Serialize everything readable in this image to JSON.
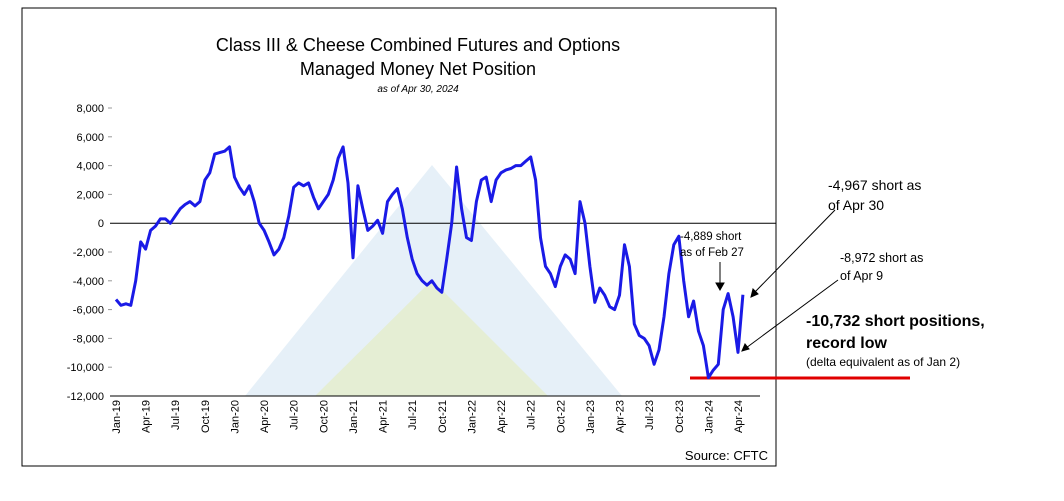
{
  "chart_data": {
    "type": "line",
    "title": [
      "Class III & Cheese Combined Futures and Options",
      "Managed Money Net Position"
    ],
    "subtitle": "as of Apr 30, 2024",
    "source": "Source: CFTC",
    "categories": [
      "Jan-19",
      null,
      null,
      null,
      null,
      null,
      "Apr-19",
      null,
      null,
      null,
      null,
      null,
      "Jul-19",
      null,
      null,
      null,
      null,
      null,
      "Oct-19",
      null,
      null,
      null,
      null,
      null,
      "Jan-20",
      null,
      null,
      null,
      null,
      null,
      "Apr-20",
      null,
      null,
      null,
      null,
      null,
      "Jul-20",
      null,
      null,
      null,
      null,
      null,
      "Oct-20",
      null,
      null,
      null,
      null,
      null,
      "Jan-21",
      null,
      null,
      null,
      null,
      null,
      "Apr-21",
      null,
      null,
      null,
      null,
      null,
      "Jul-21",
      null,
      null,
      null,
      null,
      null,
      "Oct-21",
      null,
      null,
      null,
      null,
      null,
      "Jan-22",
      null,
      null,
      null,
      null,
      null,
      "Apr-22",
      null,
      null,
      null,
      null,
      null,
      "Jul-22",
      null,
      null,
      null,
      null,
      null,
      "Oct-22",
      null,
      null,
      null,
      null,
      null,
      "Jan-23",
      null,
      null,
      null,
      null,
      null,
      "Apr-23",
      null,
      null,
      null,
      null,
      null,
      "Jul-23",
      null,
      null,
      null,
      null,
      null,
      "Oct-23",
      null,
      null,
      null,
      null,
      null,
      "Jan-24",
      null,
      null,
      null,
      null,
      null,
      "Apr-24",
      null
    ],
    "series": [
      {
        "name": "Managed Money Net Position",
        "color": "#1a1ae6",
        "values": [
          -5300,
          -5700,
          -5600,
          -5700,
          -4000,
          -1300,
          -1800,
          -500,
          -200,
          300,
          300,
          0,
          500,
          1000,
          1300,
          1500,
          1200,
          1500,
          3000,
          3500,
          4800,
          4900,
          5000,
          5300,
          3200,
          2500,
          2000,
          2600,
          1500,
          0,
          -500,
          -1300,
          -2200,
          -1800,
          -1000,
          500,
          2500,
          2800,
          2600,
          2800,
          1800,
          1000,
          1500,
          2000,
          3000,
          4500,
          5300,
          2800,
          -2400,
          2600,
          1000,
          -500,
          -200,
          200,
          -700,
          1500,
          2000,
          2400,
          1000,
          -1000,
          -2500,
          -3500,
          -4000,
          -4300,
          -4000,
          -4500,
          -4800,
          -2500,
          0,
          3900,
          1000,
          -1000,
          -1200,
          1500,
          3000,
          3200,
          1500,
          3000,
          3500,
          3700,
          3800,
          4000,
          4000,
          4300,
          4600,
          3000,
          -1000,
          -3000,
          -3500,
          -4400,
          -3000,
          -2200,
          -2500,
          -3500,
          1500,
          0,
          -3000,
          -5500,
          -4500,
          -5000,
          -5800,
          -6000,
          -5000,
          -1500,
          -3000,
          -7000,
          -7800,
          -8000,
          -8500,
          -9800,
          -8800,
          -6500,
          -3500,
          -1500,
          -900,
          -4000,
          -6500,
          -5400,
          -7500,
          -8500,
          -10732,
          -10200,
          -9800,
          -6000,
          -4889,
          -6500,
          -8972,
          -4967
        ]
      }
    ],
    "ylim": [
      -12000,
      8000
    ],
    "yticks": [
      {
        "value": -12000,
        "label": "-12,000"
      },
      {
        "value": -10000,
        "label": "-10,000"
      },
      {
        "value": -8000,
        "label": "-8,000"
      },
      {
        "value": -6000,
        "label": "-6,000"
      },
      {
        "value": -4000,
        "label": "-4,000"
      },
      {
        "value": -2000,
        "label": "-2,000"
      },
      0,
      {
        "value": 2000,
        "label": "2,000"
      },
      {
        "value": 4000,
        "label": "4,000"
      },
      {
        "value": 6000,
        "label": "6,000"
      },
      {
        "value": 8000,
        "label": "8,000"
      }
    ],
    "annotations": [
      {
        "lines": [
          "-4,889 short",
          "as of Feb 27"
        ]
      },
      {
        "lines": [
          "-4,967 short as",
          "of Apr 30"
        ]
      },
      {
        "lines": [
          "-8,972 short as",
          "of Apr 9"
        ]
      },
      {
        "lines": [
          "-10,732 short positions,",
          "record low",
          "(delta equivalent as of Jan 2)"
        ],
        "color": "#e00000"
      }
    ]
  }
}
